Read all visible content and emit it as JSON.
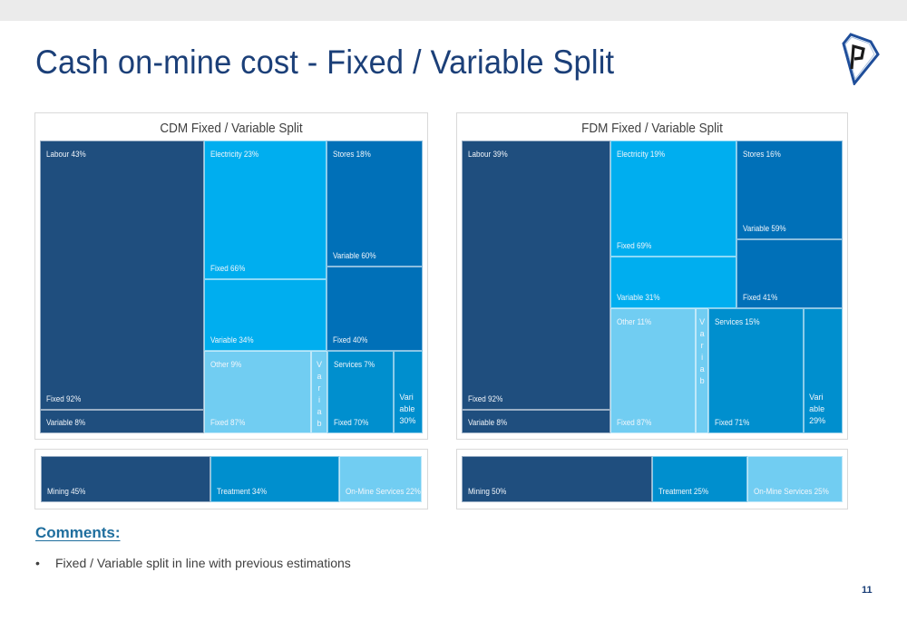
{
  "slide": {
    "title": "Cash on-mine cost - Fixed / Variable Split",
    "page_number": "11",
    "comments_heading": "Comments:",
    "comments": [
      "Fixed / Variable split in line with previous estimations"
    ],
    "bullet_char": "•",
    "logo": "diamond-p-logo-icon"
  },
  "colors": {
    "labour": "#1f4e7e",
    "electricity": "#00aeef",
    "stores": "#0070b8",
    "other": "#71cdf2",
    "services": "#008fce",
    "mining": "#1f4e7e",
    "treatment": "#008fce",
    "on_mine_services": "#71cdf2",
    "title": "#1b3f78",
    "comments": "#1f6e9e"
  },
  "chart_data": [
    {
      "type": "treemap",
      "title": "CDM Fixed / Variable Split",
      "categories": [
        {
          "name": "Labour",
          "label": "Labour 43%",
          "share": 43,
          "color_key": "labour",
          "children": [
            {
              "name": "Fixed",
              "label": "Fixed 92%",
              "share": 92
            },
            {
              "name": "Variable",
              "label": "Variable 8%",
              "share": 8
            }
          ]
        },
        {
          "name": "Electricity",
          "label": "Electricity 23%",
          "share": 23,
          "color_key": "electricity",
          "children": [
            {
              "name": "Fixed",
              "label": "Fixed 66%",
              "share": 66
            },
            {
              "name": "Variable",
              "label": "Variable 34%",
              "share": 34
            }
          ]
        },
        {
          "name": "Stores",
          "label": "Stores 18%",
          "share": 18,
          "color_key": "stores",
          "children": [
            {
              "name": "Variable",
              "label": "Variable 60%",
              "share": 60
            },
            {
              "name": "Fixed",
              "label": "Fixed 40%",
              "share": 40
            }
          ]
        },
        {
          "name": "Other",
          "label": "Other 9%",
          "share": 9,
          "color_key": "other",
          "children": [
            {
              "name": "Fixed",
              "label": "Fixed 87%",
              "share": 87
            },
            {
              "name": "Variable",
              "label": "Variab",
              "share": 13
            }
          ]
        },
        {
          "name": "Services",
          "label": "Services 7%",
          "share": 7,
          "color_key": "services",
          "children": [
            {
              "name": "Fixed",
              "label": "Fixed 70%",
              "share": 70
            },
            {
              "name": "Variable",
              "label": "Vari\nable\n30%",
              "share": 30
            }
          ]
        }
      ]
    },
    {
      "type": "treemap",
      "title": "FDM Fixed / Variable Split",
      "categories": [
        {
          "name": "Labour",
          "label": "Labour 39%",
          "share": 39,
          "color_key": "labour",
          "children": [
            {
              "name": "Fixed",
              "label": "Fixed 92%",
              "share": 92
            },
            {
              "name": "Variable",
              "label": "Variable 8%",
              "share": 8
            }
          ]
        },
        {
          "name": "Electricity",
          "label": "Electricity 19%",
          "share": 19,
          "color_key": "electricity",
          "children": [
            {
              "name": "Fixed",
              "label": "Fixed 69%",
              "share": 69
            },
            {
              "name": "Variable",
              "label": "Variable 31%",
              "share": 31
            }
          ]
        },
        {
          "name": "Stores",
          "label": "Stores 16%",
          "share": 16,
          "color_key": "stores",
          "children": [
            {
              "name": "Variable",
              "label": "Variable 59%",
              "share": 59
            },
            {
              "name": "Fixed",
              "label": "Fixed 41%",
              "share": 41
            }
          ]
        },
        {
          "name": "Other",
          "label": "Other 11%",
          "share": 11,
          "color_key": "other",
          "children": [
            {
              "name": "Fixed",
              "label": "Fixed 87%",
              "share": 87
            },
            {
              "name": "Variable",
              "label": "Variab",
              "share": 13
            }
          ]
        },
        {
          "name": "Services",
          "label": "Services 15%",
          "share": 15,
          "color_key": "services",
          "children": [
            {
              "name": "Fixed",
              "label": "Fixed 71%",
              "share": 71
            },
            {
              "name": "Variable",
              "label": "Vari\nable\n29%",
              "share": 29
            }
          ]
        }
      ]
    },
    {
      "type": "treemap",
      "title": "CDM Area Split",
      "categories": [
        {
          "name": "Mining",
          "label": "Mining 45%",
          "share": 45,
          "color_key": "mining"
        },
        {
          "name": "Treatment",
          "label": "Treatment 34%",
          "share": 34,
          "color_key": "treatment"
        },
        {
          "name": "On-Mine Services",
          "label": "On-Mine Services 22%",
          "share": 22,
          "color_key": "on_mine_services"
        }
      ]
    },
    {
      "type": "treemap",
      "title": "FDM Area Split",
      "categories": [
        {
          "name": "Mining",
          "label": "Mining 50%",
          "share": 50,
          "color_key": "mining"
        },
        {
          "name": "Treatment",
          "label": "Treatment 25%",
          "share": 25,
          "color_key": "treatment"
        },
        {
          "name": "On-Mine Services",
          "label": "On-Mine Services 25%",
          "share": 25,
          "color_key": "on_mine_services"
        }
      ]
    }
  ]
}
